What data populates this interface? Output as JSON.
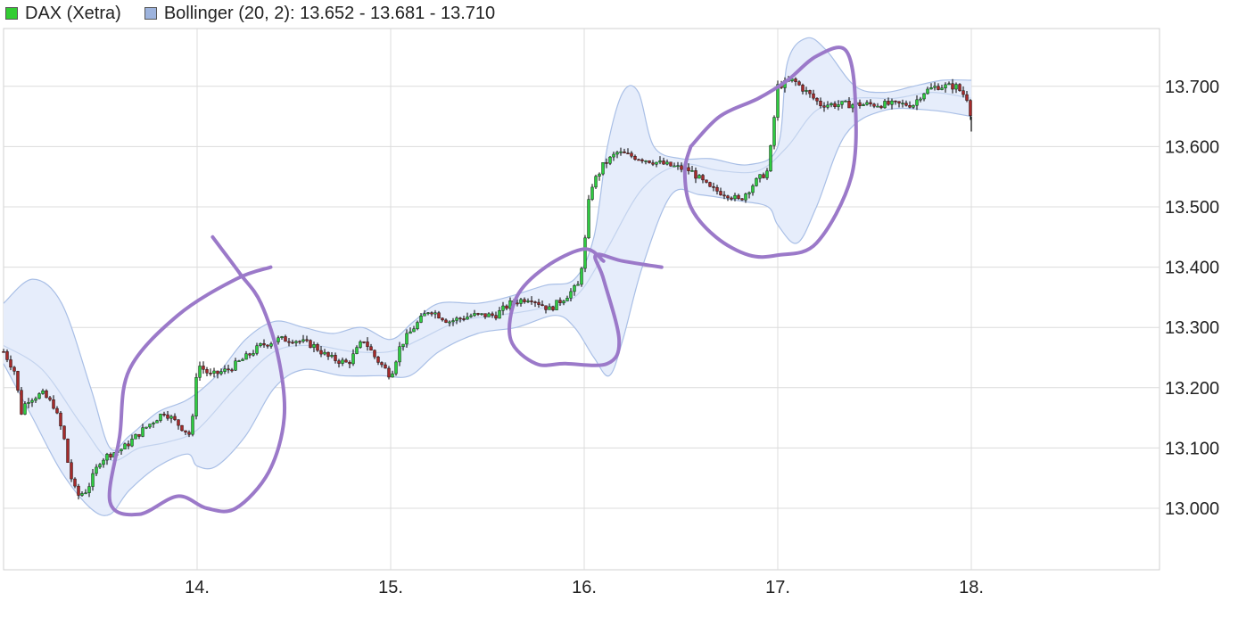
{
  "legend": {
    "series_label": "DAX (Xetra)",
    "bollinger_label": "Bollinger (20, 2): 13.652 - 13.681 - 13.710"
  },
  "colors": {
    "up": "#2ecc40",
    "down": "#a52a2a",
    "wick": "#000000",
    "band_fill": "#e6edfb",
    "band_line": "#a9bfe6",
    "mid_line": "#c3d3ee",
    "annotation": "#9b79c9",
    "grid": "#dcdcdc",
    "bollinger_swatch": "#9db3dd",
    "dax_swatch": "#33cc33"
  },
  "chart_data": {
    "type": "candlestick",
    "x_ticks": [
      "14.",
      "15.",
      "16.",
      "17.",
      "18."
    ],
    "y_ticks": [
      "13.000",
      "13.100",
      "13.200",
      "13.300",
      "13.400",
      "13.500",
      "13.600",
      "13.700"
    ],
    "xlim": [
      13.0,
      19.0
    ],
    "ylim": [
      12.9,
      13.8
    ],
    "grid": true,
    "legend_position": "top-left",
    "price_path": [
      [
        13.0,
        13.26
      ],
      [
        13.07,
        13.22
      ],
      [
        13.08,
        13.15
      ],
      [
        13.12,
        13.18
      ],
      [
        13.2,
        13.19
      ],
      [
        13.26,
        13.17
      ],
      [
        13.31,
        13.12
      ],
      [
        13.34,
        13.06
      ],
      [
        13.38,
        13.02
      ],
      [
        13.43,
        13.03
      ],
      [
        13.5,
        13.08
      ],
      [
        13.55,
        13.09
      ],
      [
        13.62,
        13.1
      ],
      [
        13.72,
        13.13
      ],
      [
        13.83,
        13.16
      ],
      [
        13.9,
        13.14
      ],
      [
        13.97,
        13.12
      ],
      [
        14.0,
        13.24
      ],
      [
        14.07,
        13.22
      ],
      [
        14.16,
        13.23
      ],
      [
        14.25,
        13.25
      ],
      [
        14.33,
        13.27
      ],
      [
        14.42,
        13.28
      ],
      [
        14.5,
        13.28
      ],
      [
        14.6,
        13.27
      ],
      [
        14.68,
        13.25
      ],
      [
        14.78,
        13.24
      ],
      [
        14.86,
        13.28
      ],
      [
        14.92,
        13.25
      ],
      [
        15.0,
        13.22
      ],
      [
        15.05,
        13.27
      ],
      [
        15.12,
        13.3
      ],
      [
        15.2,
        13.33
      ],
      [
        15.3,
        13.31
      ],
      [
        15.42,
        13.32
      ],
      [
        15.54,
        13.32
      ],
      [
        15.62,
        13.34
      ],
      [
        15.72,
        13.35
      ],
      [
        15.82,
        13.33
      ],
      [
        15.9,
        13.35
      ],
      [
        15.97,
        13.37
      ],
      [
        16.0,
        13.43
      ],
      [
        16.03,
        13.53
      ],
      [
        16.1,
        13.57
      ],
      [
        16.17,
        13.59
      ],
      [
        16.3,
        13.58
      ],
      [
        16.42,
        13.57
      ],
      [
        16.55,
        13.56
      ],
      [
        16.65,
        13.53
      ],
      [
        16.75,
        13.52
      ],
      [
        16.8,
        13.51
      ],
      [
        16.88,
        13.54
      ],
      [
        16.95,
        13.56
      ],
      [
        17.0,
        13.7
      ],
      [
        17.08,
        13.71
      ],
      [
        17.15,
        13.69
      ],
      [
        17.22,
        13.67
      ],
      [
        17.35,
        13.67
      ],
      [
        17.5,
        13.67
      ],
      [
        17.65,
        13.67
      ],
      [
        17.7,
        13.67
      ],
      [
        17.75,
        13.69
      ],
      [
        17.82,
        13.7
      ],
      [
        17.92,
        13.7
      ],
      [
        17.98,
        13.68
      ],
      [
        18.0,
        13.65
      ]
    ],
    "bollinger": {
      "upper": [
        [
          13.0,
          13.34
        ],
        [
          13.15,
          13.38
        ],
        [
          13.3,
          13.34
        ],
        [
          13.45,
          13.2
        ],
        [
          13.55,
          13.1
        ],
        [
          13.65,
          13.12
        ],
        [
          13.8,
          13.16
        ],
        [
          13.95,
          13.18
        ],
        [
          14.1,
          13.22
        ],
        [
          14.25,
          13.28
        ],
        [
          14.4,
          13.31
        ],
        [
          14.55,
          13.3
        ],
        [
          14.7,
          13.29
        ],
        [
          14.85,
          13.3
        ],
        [
          15.0,
          13.28
        ],
        [
          15.12,
          13.31
        ],
        [
          15.25,
          13.34
        ],
        [
          15.45,
          13.34
        ],
        [
          15.6,
          13.35
        ],
        [
          15.8,
          13.37
        ],
        [
          15.95,
          13.38
        ],
        [
          16.05,
          13.45
        ],
        [
          16.12,
          13.6
        ],
        [
          16.2,
          13.69
        ],
        [
          16.28,
          13.69
        ],
        [
          16.36,
          13.6
        ],
        [
          16.5,
          13.58
        ],
        [
          16.65,
          13.58
        ],
        [
          16.85,
          13.57
        ],
        [
          17.0,
          13.6
        ],
        [
          17.05,
          13.74
        ],
        [
          17.15,
          13.78
        ],
        [
          17.25,
          13.76
        ],
        [
          17.4,
          13.7
        ],
        [
          17.55,
          13.69
        ],
        [
          17.7,
          13.7
        ],
        [
          17.85,
          13.71
        ],
        [
          18.0,
          13.71
        ]
      ],
      "middle": [
        [
          13.0,
          13.27
        ],
        [
          13.2,
          13.23
        ],
        [
          13.4,
          13.14
        ],
        [
          13.55,
          13.08
        ],
        [
          13.7,
          13.1
        ],
        [
          13.85,
          13.11
        ],
        [
          14.0,
          13.13
        ],
        [
          14.2,
          13.2
        ],
        [
          14.4,
          13.26
        ],
        [
          14.6,
          13.27
        ],
        [
          14.8,
          13.26
        ],
        [
          15.0,
          13.26
        ],
        [
          15.15,
          13.28
        ],
        [
          15.35,
          13.31
        ],
        [
          15.55,
          13.32
        ],
        [
          15.75,
          13.33
        ],
        [
          15.95,
          13.35
        ],
        [
          16.1,
          13.42
        ],
        [
          16.3,
          13.53
        ],
        [
          16.5,
          13.57
        ],
        [
          16.7,
          13.56
        ],
        [
          16.9,
          13.56
        ],
        [
          17.05,
          13.6
        ],
        [
          17.2,
          13.66
        ],
        [
          17.4,
          13.68
        ],
        [
          17.6,
          13.68
        ],
        [
          17.8,
          13.69
        ],
        [
          18.0,
          13.68
        ]
      ],
      "lower": [
        [
          13.0,
          13.24
        ],
        [
          13.15,
          13.15
        ],
        [
          13.3,
          13.06
        ],
        [
          13.45,
          13.0
        ],
        [
          13.55,
          12.99
        ],
        [
          13.65,
          13.03
        ],
        [
          13.8,
          13.07
        ],
        [
          13.95,
          13.09
        ],
        [
          14.0,
          13.07
        ],
        [
          14.1,
          13.07
        ],
        [
          14.25,
          13.12
        ],
        [
          14.4,
          13.2
        ],
        [
          14.55,
          13.23
        ],
        [
          14.75,
          13.22
        ],
        [
          14.95,
          13.22
        ],
        [
          15.1,
          13.22
        ],
        [
          15.25,
          13.26
        ],
        [
          15.45,
          13.29
        ],
        [
          15.65,
          13.3
        ],
        [
          15.85,
          13.32
        ],
        [
          15.95,
          13.3
        ],
        [
          16.05,
          13.25
        ],
        [
          16.13,
          13.22
        ],
        [
          16.2,
          13.28
        ],
        [
          16.3,
          13.4
        ],
        [
          16.45,
          13.52
        ],
        [
          16.6,
          13.52
        ],
        [
          16.8,
          13.51
        ],
        [
          16.95,
          13.5
        ],
        [
          17.0,
          13.47
        ],
        [
          17.1,
          13.44
        ],
        [
          17.2,
          13.5
        ],
        [
          17.35,
          13.62
        ],
        [
          17.55,
          13.66
        ],
        [
          17.8,
          13.66
        ],
        [
          18.0,
          13.65
        ]
      ]
    },
    "annotation_strokes": [
      [
        [
          14.08,
          13.45
        ],
        [
          14.22,
          13.39
        ],
        [
          14.33,
          13.34
        ],
        [
          14.42,
          13.25
        ],
        [
          14.45,
          13.15
        ],
        [
          14.37,
          13.06
        ],
        [
          14.2,
          13.0
        ],
        [
          14.05,
          13.0
        ],
        [
          13.9,
          13.02
        ],
        [
          13.7,
          12.99
        ],
        [
          13.55,
          13.01
        ],
        [
          13.6,
          13.12
        ],
        [
          13.65,
          13.23
        ],
        [
          13.9,
          13.32
        ],
        [
          14.2,
          13.38
        ],
        [
          14.38,
          13.4
        ]
      ],
      [
        [
          16.4,
          13.4
        ],
        [
          16.2,
          13.41
        ],
        [
          16.06,
          13.42
        ],
        [
          16.1,
          13.38
        ],
        [
          16.18,
          13.28
        ],
        [
          16.12,
          13.24
        ],
        [
          15.9,
          13.24
        ],
        [
          15.75,
          13.24
        ],
        [
          15.62,
          13.28
        ],
        [
          15.65,
          13.35
        ],
        [
          15.8,
          13.4
        ],
        [
          16.0,
          13.43
        ],
        [
          16.1,
          13.41
        ]
      ],
      [
        [
          16.55,
          13.6
        ],
        [
          16.7,
          13.65
        ],
        [
          16.9,
          13.68
        ],
        [
          17.05,
          13.71
        ],
        [
          17.2,
          13.75
        ],
        [
          17.35,
          13.76
        ],
        [
          17.4,
          13.68
        ],
        [
          17.38,
          13.55
        ],
        [
          17.2,
          13.44
        ],
        [
          17.0,
          13.42
        ],
        [
          16.85,
          13.42
        ],
        [
          16.68,
          13.45
        ],
        [
          16.55,
          13.5
        ],
        [
          16.52,
          13.56
        ],
        [
          16.55,
          13.6
        ]
      ]
    ]
  }
}
